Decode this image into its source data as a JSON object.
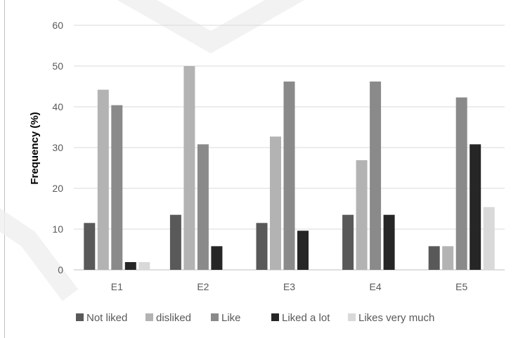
{
  "chart_data": {
    "type": "bar",
    "title": "",
    "xlabel": "",
    "ylabel": "Frequency (%)",
    "ylim": [
      0,
      60
    ],
    "yticks": [
      "0",
      "10",
      "20",
      "30",
      "40",
      "50",
      "60"
    ],
    "grid": true,
    "legend_position": "bottom",
    "categories": [
      "E1",
      "E2",
      "E3",
      "E4",
      "E5"
    ],
    "series": [
      {
        "name": "Not liked",
        "color": "#595959",
        "values": [
          11.5,
          13.5,
          11.5,
          13.5,
          5.8
        ]
      },
      {
        "name": "disliked",
        "color": "#b3b3b3",
        "values": [
          44.2,
          50.0,
          32.7,
          26.9,
          5.8
        ]
      },
      {
        "name": "Like",
        "color": "#8a8a8a",
        "values": [
          40.4,
          30.8,
          46.2,
          46.2,
          42.3
        ]
      },
      {
        "name": "Liked a lot",
        "color": "#262626",
        "values": [
          1.9,
          5.8,
          9.6,
          13.5,
          30.8
        ]
      },
      {
        "name": "Likes very much",
        "color": "#d9d9d9",
        "values": [
          1.9,
          0,
          0,
          0,
          15.4
        ]
      }
    ]
  }
}
